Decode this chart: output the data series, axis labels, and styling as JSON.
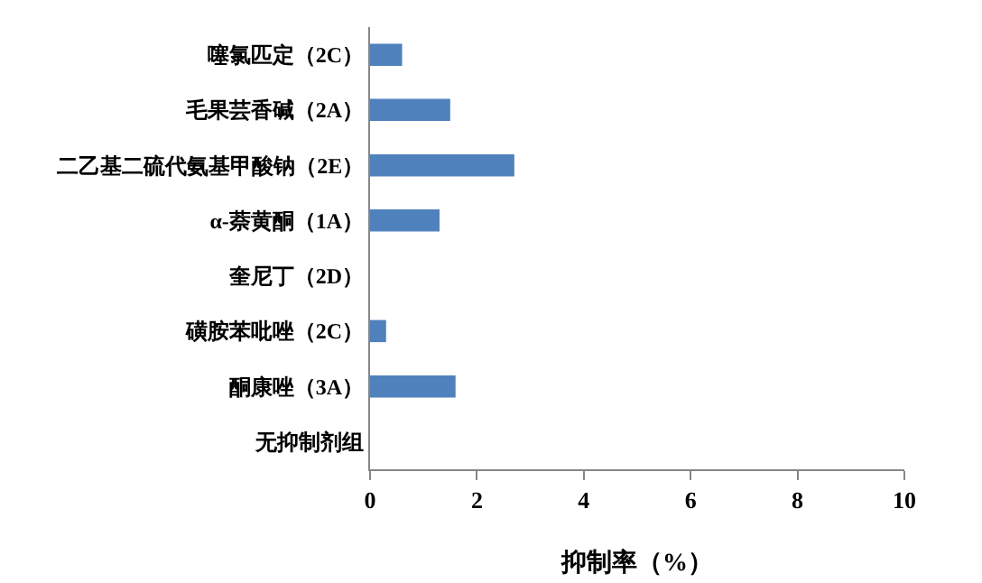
{
  "chart_data": {
    "type": "bar",
    "orientation": "horizontal",
    "categories": [
      "噻氯匹定（2C）",
      "毛果芸香碱（2A）",
      "二乙基二硫代氨基甲酸钠（2E）",
      "α-萘黄酮（1A）",
      "奎尼丁（2D）",
      "磺胺苯吡唑（2C）",
      "酮康唑（3A）",
      "无抑制剂组"
    ],
    "values": [
      0.6,
      1.5,
      2.7,
      1.3,
      0,
      0.3,
      1.6,
      0
    ],
    "color": "#4f81bd",
    "xlabel": "抑制率（%）",
    "xlim": [
      0,
      10
    ],
    "xticks": [
      0,
      2,
      4,
      6,
      8,
      10
    ]
  }
}
